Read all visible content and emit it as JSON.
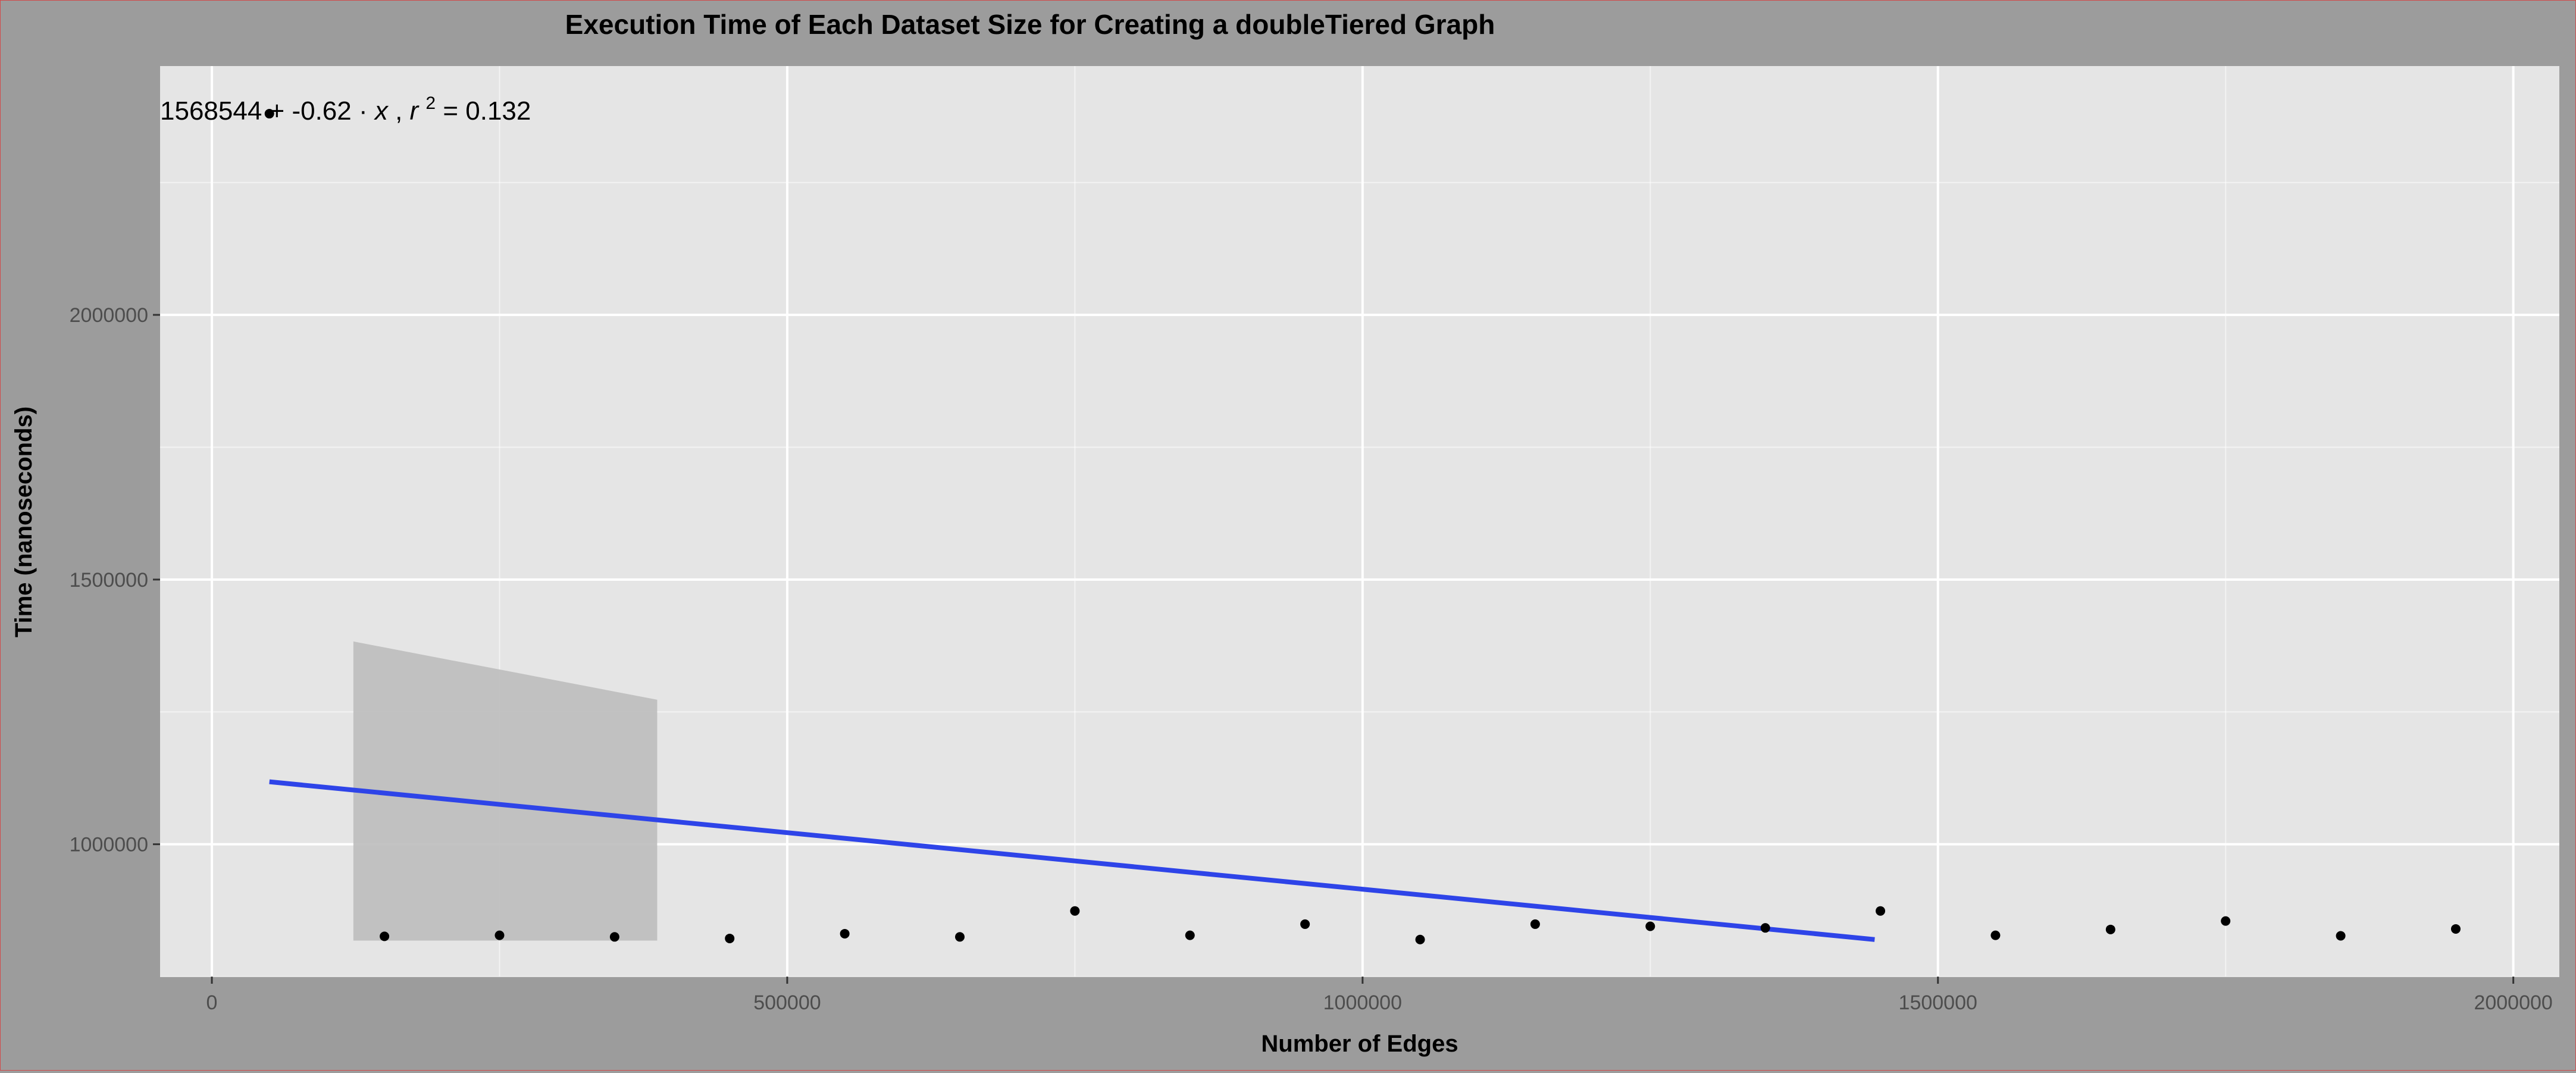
{
  "colors": {
    "background": "#9c9c9c",
    "panel": "#e5e5e5",
    "grid": "#ffffff",
    "points": "#000000",
    "regression_line": "#2e44e8",
    "confidence_band": "#bdbdbd",
    "text": "#000000",
    "tick_text": "#4d4d4d"
  },
  "chart_data": {
    "type": "scatter",
    "title": "Execution Time of Each Dataset Size for Creating a doubleTiered Graph",
    "xlabel": "Number of Edges",
    "ylabel": "Time (nanoseconds)",
    "xlim": [
      -45000,
      2040000
    ],
    "ylim": [
      750000,
      2470000
    ],
    "x_ticks": [
      0,
      500000,
      1000000,
      1500000,
      2000000
    ],
    "x_tick_labels": [
      "0",
      "500000",
      "1000000",
      "1500000",
      "2000000"
    ],
    "y_ticks": [
      1000000,
      1500000,
      2000000
    ],
    "y_tick_labels": [
      "1000000",
      "1500000",
      "2000000"
    ],
    "grid": true,
    "points": [
      {
        "x": 50000,
        "y": 2380000
      },
      {
        "x": 150000,
        "y": 826000
      },
      {
        "x": 250000,
        "y": 828000
      },
      {
        "x": 350000,
        "y": 825000
      },
      {
        "x": 450000,
        "y": 822000
      },
      {
        "x": 550000,
        "y": 831000
      },
      {
        "x": 650000,
        "y": 825000
      },
      {
        "x": 750000,
        "y": 874000
      },
      {
        "x": 850000,
        "y": 828000
      },
      {
        "x": 950000,
        "y": 849000
      },
      {
        "x": 1050000,
        "y": 820000
      },
      {
        "x": 1150000,
        "y": 849000
      },
      {
        "x": 1250000,
        "y": 845000
      },
      {
        "x": 1350000,
        "y": 842000
      },
      {
        "x": 1450000,
        "y": 874000
      },
      {
        "x": 1550000,
        "y": 828000
      },
      {
        "x": 1650000,
        "y": 839000
      },
      {
        "x": 1750000,
        "y": 855000
      },
      {
        "x": 1850000,
        "y": 827000
      },
      {
        "x": 1950000,
        "y": 840000
      }
    ],
    "regression": {
      "x": [
        50000,
        1445000
      ],
      "y": [
        1118000,
        820000
      ]
    },
    "confidence_band": {
      "x": [
        123000,
        387000
      ],
      "upper": [
        1383000,
        1273000
      ],
      "lower": [
        818000,
        818000
      ]
    },
    "annotation": {
      "intercept": "1568544",
      "op": "+ -0.62 · ",
      "var": "x",
      "sep": ",  ",
      "r": "r",
      "sup": "2",
      "r2_value": " = 0.132"
    }
  }
}
